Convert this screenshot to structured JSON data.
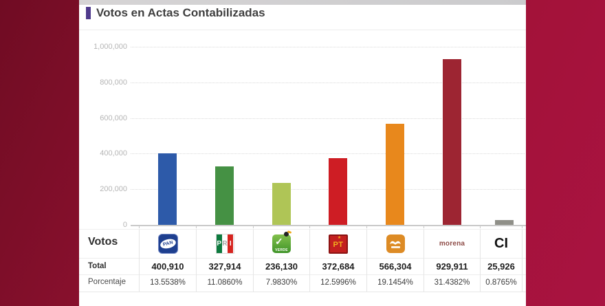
{
  "header": {
    "title": "Votos en Actas Contabilizadas",
    "accent_color": "#4f3a8c"
  },
  "chart_data": {
    "type": "bar",
    "title": "Votos en Actas Contabilizadas",
    "categories": [
      "PAN",
      "PRI",
      "VERDE",
      "PT",
      "MC",
      "MORENA",
      "CI"
    ],
    "values": [
      400910,
      327914,
      236130,
      372684,
      566304,
      929911,
      25926
    ],
    "bar_colors": [
      "#2d5aa9",
      "#459144",
      "#afc556",
      "#ce1d24",
      "#e8881c",
      "#9d2532",
      "#8f8f88"
    ],
    "xlabel": "",
    "ylabel": "",
    "ylim": [
      0,
      1000000
    ],
    "yticks": [
      0,
      200000,
      400000,
      600000,
      800000,
      1000000
    ],
    "ytick_labels": [
      "0",
      "200,000",
      "400,000",
      "600,000",
      "800,000",
      "1,000,000"
    ],
    "grid": "horizontal-dotted",
    "legend": "none"
  },
  "table": {
    "rows": {
      "votos_label": "Votos",
      "total_label": "Total",
      "porcentaje_label": "Porcentaje"
    },
    "columns": [
      {
        "party": "pan",
        "logo_icon": "pan-logo",
        "logo_text": "PAN",
        "total": "400,910",
        "porcentaje": "13.5538%",
        "brand_color": "#1e3f8f"
      },
      {
        "party": "pri",
        "logo_icon": "pri-logo",
        "logo_text": "PRI",
        "total": "327,914",
        "porcentaje": "11.0860%",
        "brand_color": "#0d7a3e"
      },
      {
        "party": "verde",
        "logo_icon": "verde-logo",
        "logo_text": "VERDE",
        "total": "236,130",
        "porcentaje": "7.9830%",
        "brand_color": "#4aa230"
      },
      {
        "party": "pt",
        "logo_icon": "pt-logo",
        "logo_text": "PT",
        "total": "372,684",
        "porcentaje": "12.5996%",
        "brand_color": "#c32020"
      },
      {
        "party": "mc",
        "logo_icon": "mc-logo",
        "logo_text": "",
        "total": "566,304",
        "porcentaje": "19.1454%",
        "brand_color": "#dd8b25"
      },
      {
        "party": "morena",
        "logo_icon": "morena-logo",
        "logo_text": "morena",
        "total": "929,911",
        "porcentaje": "31.4382%",
        "brand_color": "#8d4a45"
      },
      {
        "party": "ci",
        "logo_icon": "ci-logo",
        "logo_text": "CI",
        "total": "25,926",
        "porcentaje": "0.8765%",
        "brand_color": "#111111"
      }
    ]
  },
  "colors": {
    "background_gradient_start": "#700c23",
    "background_gradient_end": "#a91341",
    "panel": "#ffffff",
    "top_strip": "#d2d2d2",
    "title_text": "#3f3f3f",
    "axis_label": "#b5b5b5",
    "gridline": "#d9d9d9",
    "baseline": "#c9c9c9",
    "table_divider": "#e5e5e5"
  }
}
